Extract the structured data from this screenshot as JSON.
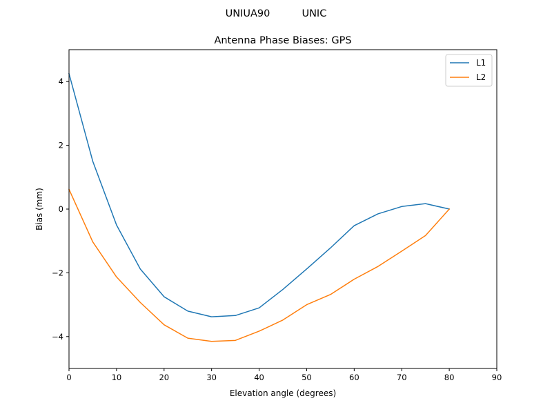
{
  "suptitle": "UNIUA90          UNIC",
  "chart_data": {
    "type": "line",
    "title": "Antenna Phase Biases: GPS",
    "xlabel": "Elevation angle (degrees)",
    "ylabel": "Bias (mm)",
    "xlim": [
      0,
      90
    ],
    "ylim": [
      -5,
      5
    ],
    "xticks": [
      0,
      10,
      20,
      30,
      40,
      50,
      60,
      70,
      80,
      90
    ],
    "yticks": [
      -4,
      -2,
      0,
      2,
      4
    ],
    "xtick_labels": [
      "0",
      "10",
      "20",
      "30",
      "40",
      "50",
      "60",
      "70",
      "80",
      "90"
    ],
    "ytick_labels": [
      "−4",
      "−2",
      "0",
      "2",
      "4"
    ],
    "grid": false,
    "legend_position": "top-right",
    "x": [
      0,
      5,
      10,
      15,
      20,
      25,
      30,
      35,
      40,
      45,
      50,
      55,
      60,
      65,
      70,
      75,
      80
    ],
    "series": [
      {
        "name": "L1",
        "color": "#1f77b4",
        "values": [
          4.25,
          1.5,
          -0.5,
          -1.88,
          -2.75,
          -3.2,
          -3.38,
          -3.34,
          -3.1,
          -2.52,
          -1.88,
          -1.22,
          -0.52,
          -0.15,
          0.08,
          0.17,
          0.0
        ]
      },
      {
        "name": "L2",
        "color": "#ff7f0e",
        "values": [
          0.62,
          -1.03,
          -2.13,
          -2.93,
          -3.63,
          -4.05,
          -4.15,
          -4.12,
          -3.83,
          -3.48,
          -3.0,
          -2.68,
          -2.2,
          -1.8,
          -1.32,
          -0.83,
          0.0
        ]
      }
    ]
  }
}
